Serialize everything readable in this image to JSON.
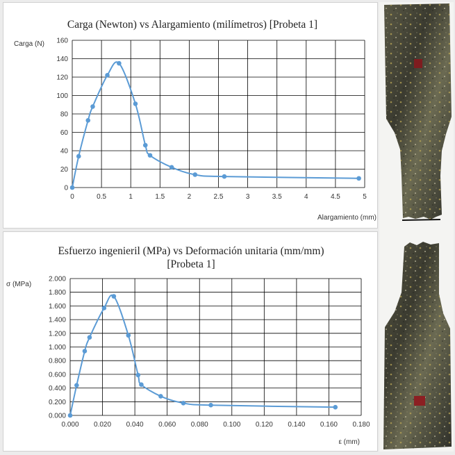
{
  "colors": {
    "series": "#5b9bd5",
    "grid": "#000000",
    "axis": "#000000"
  },
  "chart_data": [
    {
      "type": "line",
      "title": "Carga  (Newton)  vs  Alargamiento  (milímetros)  [Probeta  1]",
      "xlabel": "Alargamiento (mm)",
      "ylabel": "Carga (N)",
      "xlim": [
        0,
        5
      ],
      "ylim": [
        0,
        160
      ],
      "xticks": [
        0,
        0.5,
        1,
        1.5,
        2,
        2.5,
        3,
        3.5,
        4,
        4.5,
        5
      ],
      "xtick_labels": [
        "0",
        "0.5",
        "1",
        "1.5",
        "2",
        "2.5",
        "3",
        "3.5",
        "4",
        "4.5",
        "5"
      ],
      "yticks": [
        0,
        20,
        40,
        60,
        80,
        100,
        120,
        140,
        160
      ],
      "ytick_labels": [
        "0",
        "20",
        "40",
        "60",
        "80",
        "100",
        "120",
        "140",
        "160"
      ],
      "grid": true,
      "series": [
        {
          "x": [
            0,
            0.11,
            0.27,
            0.35,
            0.6,
            0.8,
            1.08,
            1.25,
            1.33,
            1.7,
            2.1,
            2.6,
            4.9
          ],
          "y": [
            0,
            34,
            73,
            88,
            122,
            135,
            91,
            46,
            35,
            22,
            14,
            12,
            10
          ]
        }
      ]
    },
    {
      "type": "line",
      "title": "Esfuerzo  ingenieril  (MPa)  vs  Deformación  unitaria  (mm/mm)",
      "title_line2": "[Probeta  1]",
      "xlabel": "ε (mm)",
      "ylabel": "σ (MPa)",
      "xlim": [
        0,
        0.18
      ],
      "ylim": [
        0,
        2
      ],
      "xticks": [
        0,
        0.02,
        0.04,
        0.06,
        0.08,
        0.1,
        0.12,
        0.14,
        0.16,
        0.18
      ],
      "xtick_labels": [
        "0.000",
        "0.020",
        "0.040",
        "0.060",
        "0.080",
        "0.100",
        "0.120",
        "0.140",
        "0.160",
        "0.180"
      ],
      "yticks": [
        0,
        0.2,
        0.4,
        0.6,
        0.8,
        1,
        1.2,
        1.4,
        1.6,
        1.8,
        2
      ],
      "ytick_labels": [
        "0.000",
        "0.200",
        "0.400",
        "0.600",
        "0.800",
        "1.000",
        "1.200",
        "1.400",
        "1.600",
        "1.800",
        "2.000"
      ],
      "grid": true,
      "series": [
        {
          "x": [
            0,
            0.004,
            0.009,
            0.012,
            0.021,
            0.027,
            0.036,
            0.042,
            0.044,
            0.056,
            0.07,
            0.087,
            0.164
          ],
          "y": [
            0,
            0.44,
            0.94,
            1.14,
            1.57,
            1.74,
            1.17,
            0.59,
            0.45,
            0.28,
            0.18,
            0.15,
            0.12
          ]
        }
      ]
    }
  ]
}
